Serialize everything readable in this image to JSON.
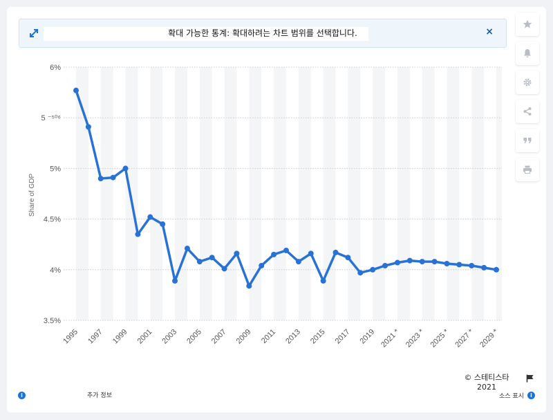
{
  "banner": {
    "text": "확대 가능한 통계: 확대하려는 차트 범위를 선택합니다.",
    "close": "×"
  },
  "toolbar": {
    "icons": [
      "star-icon",
      "bell-icon",
      "gear-icon",
      "share-icon",
      "quote-icon",
      "print-icon"
    ]
  },
  "footer": {
    "copyright": "© 스테티스타",
    "year": "2021",
    "more_info": "추가 정보",
    "source": "소스 표시"
  },
  "colors": {
    "line": "#2872d6",
    "band": "#f4f5f7",
    "accent": "#1a73d9"
  },
  "chart_data": {
    "type": "line",
    "ylabel": "Share of GDP",
    "ylim": [
      3.5,
      6
    ],
    "y_ticks": [
      {
        "value": 6,
        "label": "6%"
      },
      {
        "value": 5.5,
        "label": "5 ⁻⁵⁰⁶"
      },
      {
        "value": 5,
        "label": "5%"
      },
      {
        "value": 4.5,
        "label": "4.5%"
      },
      {
        "value": 4,
        "label": "4%"
      },
      {
        "value": 3.5,
        "label": "3.5%"
      }
    ],
    "x": [
      1995,
      1996,
      1997,
      1998,
      1999,
      2000,
      2001,
      2002,
      2003,
      2004,
      2005,
      2006,
      2007,
      2008,
      2009,
      2010,
      2011,
      2012,
      2013,
      2014,
      2015,
      2016,
      2017,
      2018,
      2019,
      2020,
      2021,
      2022,
      2023,
      2024,
      2025,
      2026,
      2027,
      2028,
      2029
    ],
    "x_tick_labels": [
      {
        "x": 1995,
        "label": "1995"
      },
      {
        "x": 1997,
        "label": "1997"
      },
      {
        "x": 1999,
        "label": "1999"
      },
      {
        "x": 2001,
        "label": "2001"
      },
      {
        "x": 2003,
        "label": "2003"
      },
      {
        "x": 2005,
        "label": "2005"
      },
      {
        "x": 2007,
        "label": "2007"
      },
      {
        "x": 2009,
        "label": "2009"
      },
      {
        "x": 2011,
        "label": "2011"
      },
      {
        "x": 2013,
        "label": "2013"
      },
      {
        "x": 2015,
        "label": "2015"
      },
      {
        "x": 2017,
        "label": "2017"
      },
      {
        "x": 2019,
        "label": "2019"
      },
      {
        "x": 2021,
        "label": "2021 *"
      },
      {
        "x": 2023,
        "label": "2023 *"
      },
      {
        "x": 2025,
        "label": "2025 *"
      },
      {
        "x": 2027,
        "label": "2027 *"
      },
      {
        "x": 2029,
        "label": "2029 *"
      }
    ],
    "series": [
      {
        "values": [
          5.77,
          5.41,
          4.9,
          4.91,
          5.0,
          4.35,
          4.52,
          4.45,
          3.89,
          4.21,
          4.08,
          4.12,
          4.01,
          4.16,
          3.84,
          4.04,
          4.15,
          4.19,
          4.08,
          4.16,
          3.89,
          4.17,
          4.12,
          3.97,
          4.0,
          4.04,
          4.07,
          4.09,
          4.08,
          4.08,
          4.06,
          4.05,
          4.04,
          4.02,
          4.0
        ]
      }
    ],
    "grid": true
  }
}
